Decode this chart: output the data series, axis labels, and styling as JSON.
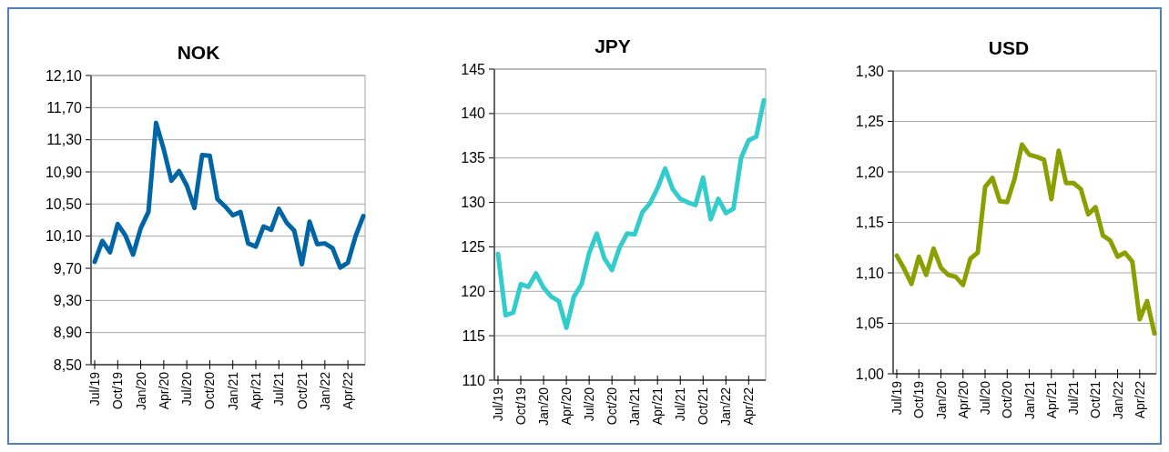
{
  "chart_data": [
    {
      "type": "line",
      "title": "NOK",
      "categories": [
        "Jul/19",
        null,
        null,
        "Oct/19",
        null,
        null,
        "Jan/20",
        null,
        null,
        "Apr/20",
        null,
        null,
        "Jul/20",
        null,
        null,
        "Oct/20",
        null,
        null,
        "Jan/21",
        null,
        null,
        "Apr/21",
        null,
        null,
        "Jul/21",
        null,
        null,
        "Oct/21",
        null,
        null,
        "Jan/22",
        null,
        null,
        "Apr/22",
        null,
        null
      ],
      "series": [
        {
          "color": "#0065a4",
          "values": [
            9.78,
            10.04,
            9.9,
            10.25,
            10.11,
            9.87,
            10.2,
            10.4,
            11.51,
            11.18,
            10.79,
            10.91,
            10.73,
            10.45,
            11.11,
            11.1,
            10.56,
            10.47,
            10.36,
            10.4,
            10.01,
            9.97,
            10.22,
            10.18,
            10.44,
            10.27,
            10.17,
            9.75,
            10.28,
            10.0,
            10.01,
            9.95,
            9.71,
            9.77,
            10.1,
            10.35
          ]
        }
      ],
      "ylim": [
        8.5,
        12.1
      ],
      "yticks": [
        {
          "value": 8.5,
          "label": "8,50"
        },
        {
          "value": 8.9,
          "label": "8,90"
        },
        {
          "value": 9.3,
          "label": "9,30"
        },
        {
          "value": 9.7,
          "label": "9,70"
        },
        {
          "value": 10.1,
          "label": "10,10"
        },
        {
          "value": 10.5,
          "label": "10,50"
        },
        {
          "value": 10.9,
          "label": "10,90"
        },
        {
          "value": 11.3,
          "label": "11,30"
        },
        {
          "value": 11.7,
          "label": "11,70"
        },
        {
          "value": 12.1,
          "label": "12,10"
        }
      ],
      "grid": "y"
    },
    {
      "type": "line",
      "title": "JPY",
      "categories": [
        "Jul/19",
        null,
        null,
        "Oct/19",
        null,
        null,
        "Jan/20",
        null,
        null,
        "Apr/20",
        null,
        null,
        "Jul/20",
        null,
        null,
        "Oct/20",
        null,
        null,
        "Jan/21",
        null,
        null,
        "Apr/21",
        null,
        null,
        "Jul/21",
        null,
        null,
        "Oct/21",
        null,
        null,
        "Jan/22",
        null,
        null,
        "Apr/22",
        null,
        null
      ],
      "series": [
        {
          "color": "#33cccc",
          "values": [
            124.2,
            117.3,
            117.6,
            120.8,
            120.5,
            122.0,
            120.4,
            119.4,
            118.9,
            115.9,
            119.4,
            120.8,
            124.3,
            126.5,
            123.7,
            122.4,
            124.9,
            126.5,
            126.4,
            128.9,
            129.9,
            131.6,
            133.8,
            131.5,
            130.4,
            130.0,
            129.7,
            132.8,
            128.1,
            130.4,
            128.8,
            129.3,
            135.0,
            137.0,
            137.4,
            141.5
          ]
        }
      ],
      "ylim": [
        110,
        145
      ],
      "yticks": [
        110,
        115,
        120,
        125,
        130,
        135,
        140,
        145
      ],
      "grid": "y"
    },
    {
      "type": "line",
      "title": "USD",
      "categories": [
        "Jul/19",
        null,
        null,
        "Oct/19",
        null,
        null,
        "Jan/20",
        null,
        null,
        "Apr/20",
        null,
        null,
        "Jul/20",
        null,
        null,
        "Oct/20",
        null,
        null,
        "Jan/21",
        null,
        null,
        "Apr/21",
        null,
        null,
        "Jul/21",
        null,
        null,
        "Oct/21",
        null,
        null,
        "Jan/22",
        null,
        null,
        "Apr/22",
        null,
        null
      ],
      "series": [
        {
          "color": "#8aa000",
          "values": [
            1.117,
            1.104,
            1.089,
            1.116,
            1.098,
            1.124,
            1.105,
            1.098,
            1.096,
            1.088,
            1.114,
            1.12,
            1.185,
            1.194,
            1.171,
            1.17,
            1.193,
            1.227,
            1.217,
            1.215,
            1.212,
            1.173,
            1.221,
            1.189,
            1.189,
            1.183,
            1.158,
            1.165,
            1.137,
            1.132,
            1.116,
            1.12,
            1.111,
            1.054,
            1.072,
            1.04
          ]
        }
      ],
      "ylim": [
        1.0,
        1.3
      ],
      "yticks": [
        {
          "value": 1.0,
          "label": "1,00"
        },
        {
          "value": 1.05,
          "label": "1,05"
        },
        {
          "value": 1.1,
          "label": "1,10"
        },
        {
          "value": 1.15,
          "label": "1,15"
        },
        {
          "value": 1.2,
          "label": "1,20"
        },
        {
          "value": 1.25,
          "label": "1,25"
        },
        {
          "value": 1.3,
          "label": "1,30"
        }
      ],
      "grid": "y"
    }
  ]
}
